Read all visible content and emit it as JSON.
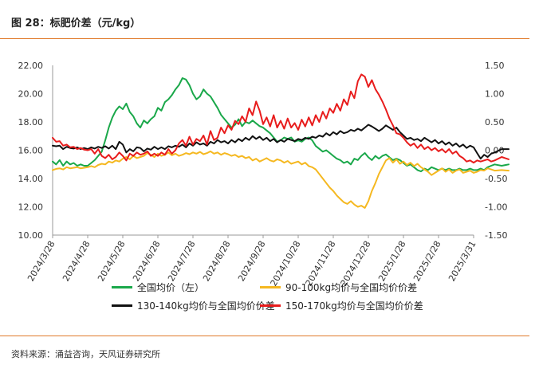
{
  "header": {
    "title": "图 28：标肥价差（元/kg）"
  },
  "footer": {
    "source": "资料来源：涌益咨询，天风证券研究所"
  },
  "chart_data": {
    "type": "line",
    "x_labels": [
      "2024/3/28",
      "2024/4/28",
      "2024/5/28",
      "2024/6/28",
      "2024/7/28",
      "2024/8/28",
      "2024/9/28",
      "2024/10/28",
      "2024/11/28",
      "2024/12/28",
      "2025/1/28",
      "2025/2/28",
      "2025/3/31"
    ],
    "y_left": {
      "min": 10,
      "max": 22,
      "ticks": [
        "10.00",
        "12.00",
        "14.00",
        "16.00",
        "18.00",
        "20.00",
        "22.00"
      ]
    },
    "y_right": {
      "min": -1.5,
      "max": 1.5,
      "ticks": [
        "-1.50",
        "-1.00",
        "-0.50",
        "0.00",
        "0.50",
        "1.00",
        "1.50"
      ]
    },
    "grid": false,
    "legend_position": "bottom",
    "series": [
      {
        "name": "全国均价（左）",
        "axis": "left",
        "color": "#1aa84a",
        "x": [
          0,
          0.1,
          0.2,
          0.3,
          0.4,
          0.5,
          0.6,
          0.7,
          0.8,
          0.9,
          1.0,
          1.1,
          1.2,
          1.3,
          1.4,
          1.5,
          1.6,
          1.7,
          1.8,
          1.9,
          2.0,
          2.1,
          2.2,
          2.3,
          2.4,
          2.5,
          2.6,
          2.7,
          2.8,
          2.9,
          3.0,
          3.1,
          3.2,
          3.3,
          3.4,
          3.5,
          3.6,
          3.7,
          3.8,
          3.9,
          4.0,
          4.1,
          4.2,
          4.3,
          4.4,
          4.5,
          4.6,
          4.7,
          4.8,
          4.9,
          5.0,
          5.1,
          5.2,
          5.3,
          5.4,
          5.5,
          5.6,
          5.7,
          5.8,
          5.9,
          6.0,
          6.1,
          6.2,
          6.3,
          6.4,
          6.5,
          6.6,
          6.7,
          6.8,
          6.9,
          7.0,
          7.1,
          7.2,
          7.3,
          7.4,
          7.5,
          7.6,
          7.7,
          7.8,
          7.9,
          8.0,
          8.1,
          8.2,
          8.3,
          8.4,
          8.5,
          8.6,
          8.7,
          8.8,
          8.9,
          9.0,
          9.1,
          9.2,
          9.3,
          9.4,
          9.5,
          9.6,
          9.7,
          9.8,
          9.9,
          10.0,
          10.1,
          10.2,
          10.3,
          10.4,
          10.5,
          10.6,
          10.7,
          10.8,
          10.9,
          11.0,
          11.1,
          11.2,
          11.3,
          11.4,
          11.5,
          11.6,
          11.7,
          11.8,
          11.9,
          12.0,
          12.1,
          12.2,
          12.3,
          12.4,
          12.5,
          12.6,
          12.8,
          13.0
        ],
        "values": [
          15.2,
          15.0,
          15.3,
          14.9,
          15.2,
          15.0,
          15.1,
          14.9,
          15.0,
          14.9,
          14.9,
          15.1,
          15.3,
          15.6,
          15.9,
          16.7,
          17.6,
          18.3,
          18.8,
          19.1,
          18.9,
          19.3,
          18.7,
          18.4,
          17.9,
          17.6,
          18.1,
          17.9,
          18.2,
          18.4,
          19.0,
          18.8,
          19.4,
          19.6,
          19.9,
          20.3,
          20.6,
          21.1,
          21.0,
          20.6,
          20.0,
          19.6,
          19.8,
          20.3,
          20.0,
          19.8,
          19.4,
          19.0,
          18.5,
          18.2,
          17.9,
          17.6,
          17.8,
          18.2,
          17.7,
          18.0,
          17.9,
          18.1,
          17.9,
          17.7,
          17.6,
          17.4,
          17.2,
          16.9,
          16.6,
          16.7,
          16.9,
          16.8,
          16.9,
          16.6,
          16.7,
          16.6,
          16.8,
          16.9,
          16.7,
          16.3,
          16.1,
          15.9,
          16.0,
          15.8,
          15.6,
          15.4,
          15.3,
          15.1,
          15.2,
          15.0,
          15.4,
          15.3,
          15.6,
          15.8,
          15.5,
          15.3,
          15.6,
          15.4,
          15.6,
          15.7,
          15.5,
          15.3,
          15.4,
          15.3,
          15.1,
          14.9,
          15.0,
          14.8,
          14.6,
          14.5,
          14.7,
          14.6,
          14.8,
          14.7,
          14.6,
          14.7,
          14.6,
          14.7,
          14.6,
          14.6,
          14.7,
          14.6,
          14.6,
          14.7,
          14.6,
          14.6,
          14.7,
          14.6,
          14.8,
          14.9,
          15.0,
          14.9,
          15.0
        ]
      },
      {
        "name": "90-100kg均价与全国均价价差",
        "axis": "right",
        "color": "#f5b820",
        "x": [
          0,
          0.1,
          0.2,
          0.3,
          0.4,
          0.5,
          0.6,
          0.7,
          0.8,
          0.9,
          1.0,
          1.1,
          1.2,
          1.3,
          1.4,
          1.5,
          1.6,
          1.7,
          1.8,
          1.9,
          2.0,
          2.1,
          2.2,
          2.3,
          2.4,
          2.5,
          2.6,
          2.7,
          2.8,
          2.9,
          3.0,
          3.1,
          3.2,
          3.3,
          3.4,
          3.5,
          3.6,
          3.7,
          3.8,
          3.9,
          4.0,
          4.1,
          4.2,
          4.3,
          4.4,
          4.5,
          4.6,
          4.7,
          4.8,
          4.9,
          5.0,
          5.1,
          5.2,
          5.3,
          5.4,
          5.5,
          5.6,
          5.7,
          5.8,
          5.9,
          6.0,
          6.1,
          6.2,
          6.3,
          6.4,
          6.5,
          6.6,
          6.7,
          6.8,
          6.9,
          7.0,
          7.1,
          7.2,
          7.3,
          7.4,
          7.5,
          7.6,
          7.7,
          7.8,
          7.9,
          8.0,
          8.1,
          8.2,
          8.3,
          8.4,
          8.5,
          8.6,
          8.7,
          8.8,
          8.9,
          9.0,
          9.1,
          9.2,
          9.3,
          9.4,
          9.5,
          9.6,
          9.7,
          9.8,
          9.9,
          10.0,
          10.1,
          10.2,
          10.3,
          10.4,
          10.5,
          10.6,
          10.7,
          10.8,
          10.9,
          11.0,
          11.1,
          11.2,
          11.3,
          11.4,
          11.5,
          11.6,
          11.7,
          11.8,
          11.9,
          12.0,
          12.1,
          12.2,
          12.3,
          12.4,
          12.5,
          12.6,
          12.8,
          13.0
        ],
        "values": [
          -0.35,
          -0.33,
          -0.32,
          -0.34,
          -0.3,
          -0.32,
          -0.31,
          -0.3,
          -0.32,
          -0.31,
          -0.3,
          -0.28,
          -0.3,
          -0.26,
          -0.24,
          -0.25,
          -0.2,
          -0.22,
          -0.18,
          -0.2,
          -0.15,
          -0.12,
          -0.16,
          -0.1,
          -0.14,
          -0.12,
          -0.1,
          -0.05,
          -0.08,
          -0.12,
          -0.06,
          -0.1,
          -0.08,
          -0.04,
          -0.09,
          -0.06,
          -0.1,
          -0.08,
          -0.05,
          -0.07,
          -0.04,
          -0.06,
          -0.03,
          -0.07,
          -0.05,
          -0.02,
          -0.06,
          -0.04,
          -0.08,
          -0.05,
          -0.07,
          -0.1,
          -0.08,
          -0.12,
          -0.1,
          -0.14,
          -0.12,
          -0.18,
          -0.15,
          -0.2,
          -0.17,
          -0.14,
          -0.18,
          -0.2,
          -0.16,
          -0.18,
          -0.22,
          -0.19,
          -0.24,
          -0.22,
          -0.2,
          -0.25,
          -0.22,
          -0.28,
          -0.3,
          -0.34,
          -0.42,
          -0.5,
          -0.58,
          -0.66,
          -0.72,
          -0.8,
          -0.86,
          -0.92,
          -0.95,
          -0.9,
          -0.96,
          -1.0,
          -0.98,
          -1.02,
          -0.9,
          -0.72,
          -0.58,
          -0.42,
          -0.3,
          -0.18,
          -0.14,
          -0.22,
          -0.16,
          -0.24,
          -0.2,
          -0.26,
          -0.22,
          -0.28,
          -0.24,
          -0.3,
          -0.34,
          -0.38,
          -0.44,
          -0.4,
          -0.36,
          -0.32,
          -0.38,
          -0.34,
          -0.4,
          -0.36,
          -0.34,
          -0.4,
          -0.38,
          -0.36,
          -0.4,
          -0.38,
          -0.35,
          -0.36,
          -0.32,
          -0.34,
          -0.36,
          -0.35,
          -0.36
        ]
      },
      {
        "name": "130-140kg均价与全国均价价差",
        "axis": "right",
        "color": "#111111",
        "x": [
          0,
          0.1,
          0.2,
          0.3,
          0.4,
          0.5,
          0.6,
          0.7,
          0.8,
          0.9,
          1.0,
          1.1,
          1.2,
          1.3,
          1.4,
          1.5,
          1.6,
          1.7,
          1.8,
          1.9,
          2.0,
          2.1,
          2.2,
          2.3,
          2.4,
          2.5,
          2.6,
          2.7,
          2.8,
          2.9,
          3.0,
          3.1,
          3.2,
          3.3,
          3.4,
          3.5,
          3.6,
          3.7,
          3.8,
          3.9,
          4.0,
          4.1,
          4.2,
          4.3,
          4.4,
          4.5,
          4.6,
          4.7,
          4.8,
          4.9,
          5.0,
          5.1,
          5.2,
          5.3,
          5.4,
          5.5,
          5.6,
          5.7,
          5.8,
          5.9,
          6.0,
          6.1,
          6.2,
          6.3,
          6.4,
          6.5,
          6.6,
          6.7,
          6.8,
          6.9,
          7.0,
          7.1,
          7.2,
          7.3,
          7.4,
          7.5,
          7.6,
          7.7,
          7.8,
          7.9,
          8.0,
          8.1,
          8.2,
          8.3,
          8.4,
          8.5,
          8.6,
          8.7,
          8.8,
          8.9,
          9.0,
          9.1,
          9.2,
          9.3,
          9.4,
          9.5,
          9.6,
          9.7,
          9.8,
          9.9,
          10.0,
          10.1,
          10.2,
          10.3,
          10.4,
          10.5,
          10.6,
          10.7,
          10.8,
          10.9,
          11.0,
          11.1,
          11.2,
          11.3,
          11.4,
          11.5,
          11.6,
          11.7,
          11.8,
          11.9,
          12.0,
          12.1,
          12.2,
          12.3,
          12.4,
          12.5,
          12.6,
          12.8,
          13.0
        ],
        "values": [
          0.08,
          0.07,
          0.08,
          0.02,
          0.06,
          0.04,
          0.03,
          0.05,
          0.02,
          0.04,
          0.02,
          0.05,
          0.03,
          0.06,
          0.04,
          0.07,
          0.03,
          0.08,
          0.02,
          0.15,
          0.1,
          -0.04,
          0.02,
          -0.02,
          0.05,
          0.04,
          -0.02,
          0.03,
          0.01,
          0.06,
          0.02,
          0.05,
          0.02,
          0.07,
          0.05,
          0.08,
          0.06,
          0.1,
          0.05,
          0.12,
          0.08,
          0.14,
          0.1,
          0.12,
          0.08,
          0.15,
          0.12,
          0.18,
          0.14,
          0.16,
          0.12,
          0.18,
          0.14,
          0.2,
          0.16,
          0.22,
          0.18,
          0.25,
          0.2,
          0.24,
          0.18,
          0.22,
          0.16,
          0.2,
          0.14,
          0.18,
          0.15,
          0.2,
          0.18,
          0.16,
          0.2,
          0.18,
          0.22,
          0.2,
          0.24,
          0.22,
          0.26,
          0.24,
          0.3,
          0.26,
          0.32,
          0.28,
          0.34,
          0.3,
          0.32,
          0.36,
          0.34,
          0.38,
          0.35,
          0.4,
          0.45,
          0.42,
          0.38,
          0.34,
          0.38,
          0.44,
          0.4,
          0.36,
          0.4,
          0.32,
          0.26,
          0.2,
          0.22,
          0.18,
          0.2,
          0.16,
          0.22,
          0.18,
          0.14,
          0.18,
          0.12,
          0.16,
          0.1,
          0.14,
          0.08,
          0.12,
          0.06,
          0.1,
          0.04,
          0.08,
          0.05,
          -0.05,
          -0.15,
          -0.08,
          -0.12,
          -0.06,
          -0.04,
          0.02,
          0.02
        ]
      },
      {
        "name": "150-170kg均价与全国均价价差",
        "axis": "right",
        "color": "#e81c1c",
        "x": [
          0,
          0.1,
          0.2,
          0.3,
          0.4,
          0.5,
          0.6,
          0.7,
          0.8,
          0.9,
          1.0,
          1.1,
          1.2,
          1.3,
          1.4,
          1.5,
          1.6,
          1.7,
          1.8,
          1.9,
          2.0,
          2.1,
          2.2,
          2.3,
          2.4,
          2.5,
          2.6,
          2.7,
          2.8,
          2.9,
          3.0,
          3.1,
          3.2,
          3.3,
          3.4,
          3.5,
          3.6,
          3.7,
          3.8,
          3.9,
          4.0,
          4.1,
          4.2,
          4.3,
          4.4,
          4.5,
          4.6,
          4.7,
          4.8,
          4.9,
          5.0,
          5.1,
          5.2,
          5.3,
          5.4,
          5.5,
          5.6,
          5.7,
          5.8,
          5.9,
          6.0,
          6.1,
          6.2,
          6.3,
          6.4,
          6.5,
          6.6,
          6.7,
          6.8,
          6.9,
          7.0,
          7.1,
          7.2,
          7.3,
          7.4,
          7.5,
          7.6,
          7.7,
          7.8,
          7.9,
          8.0,
          8.1,
          8.2,
          8.3,
          8.4,
          8.5,
          8.6,
          8.7,
          8.8,
          8.9,
          9.0,
          9.1,
          9.2,
          9.3,
          9.4,
          9.5,
          9.6,
          9.7,
          9.8,
          9.9,
          10.0,
          10.1,
          10.2,
          10.3,
          10.4,
          10.5,
          10.6,
          10.7,
          10.8,
          10.9,
          11.0,
          11.1,
          11.2,
          11.3,
          11.4,
          11.5,
          11.6,
          11.7,
          11.8,
          11.9,
          12.0,
          12.1,
          12.2,
          12.3,
          12.4,
          12.5,
          12.6,
          12.8,
          13.0
        ],
        "values": [
          0.22,
          0.15,
          0.16,
          0.08,
          0.1,
          0.05,
          0.06,
          0.02,
          0.04,
          0.01,
          0.0,
          0.02,
          -0.06,
          0.02,
          -0.1,
          -0.14,
          -0.08,
          -0.16,
          -0.12,
          -0.04,
          -0.1,
          -0.18,
          -0.06,
          -0.1,
          -0.04,
          -0.08,
          -0.06,
          -0.02,
          -0.1,
          -0.06,
          -0.1,
          -0.04,
          -0.08,
          0.02,
          -0.06,
          0.0,
          0.12,
          0.18,
          0.08,
          0.24,
          0.1,
          0.2,
          0.16,
          0.26,
          0.1,
          0.34,
          0.18,
          0.22,
          0.4,
          0.3,
          0.44,
          0.36,
          0.52,
          0.46,
          0.6,
          0.5,
          0.74,
          0.62,
          0.86,
          0.7,
          0.46,
          0.58,
          0.42,
          0.62,
          0.4,
          0.52,
          0.38,
          0.56,
          0.4,
          0.48,
          0.36,
          0.54,
          0.42,
          0.58,
          0.44,
          0.62,
          0.5,
          0.68,
          0.56,
          0.74,
          0.66,
          0.82,
          0.7,
          0.9,
          0.8,
          1.04,
          0.92,
          1.22,
          1.34,
          1.3,
          1.12,
          1.24,
          1.08,
          0.98,
          0.86,
          0.72,
          0.56,
          0.44,
          0.3,
          0.28,
          0.22,
          0.14,
          0.08,
          0.12,
          0.04,
          0.1,
          0.02,
          0.06,
          0.0,
          0.04,
          -0.02,
          0.02,
          -0.04,
          0.02,
          -0.06,
          -0.02,
          -0.1,
          -0.14,
          -0.2,
          -0.18,
          -0.22,
          -0.18,
          -0.2,
          -0.18,
          -0.16,
          -0.2,
          -0.18,
          -0.12,
          -0.16
        ]
      }
    ]
  }
}
